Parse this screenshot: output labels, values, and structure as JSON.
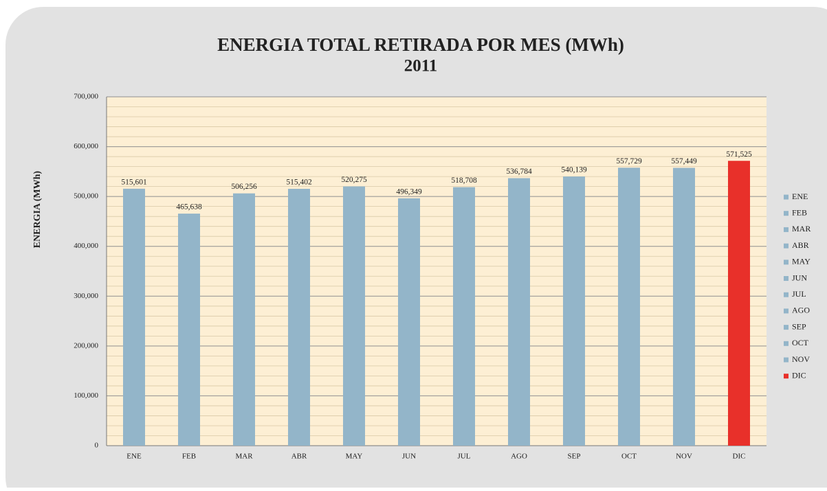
{
  "chart_data": {
    "type": "bar",
    "title": "ENERGIA TOTAL RETIRADA POR MES (MWh)",
    "subtitle": "2011",
    "y_label": "ENERGIA (MWh)",
    "categories": [
      "ENE",
      "FEB",
      "MAR",
      "ABR",
      "MAY",
      "JUN",
      "JUL",
      "AGO",
      "SEP",
      "OCT",
      "NOV",
      "DIC"
    ],
    "values": [
      515601,
      465638,
      506256,
      515402,
      520275,
      496349,
      518708,
      536784,
      540139,
      557729,
      557449,
      571525
    ],
    "value_labels": [
      "515,601",
      "465,638",
      "506,256",
      "515,402",
      "520,275",
      "496,349",
      "518,708",
      "536,784",
      "540,139",
      "557,729",
      "557,449",
      "571,525"
    ],
    "colors": [
      "#93b5c9",
      "#93b5c9",
      "#93b5c9",
      "#93b5c9",
      "#93b5c9",
      "#93b5c9",
      "#93b5c9",
      "#93b5c9",
      "#93b5c9",
      "#93b5c9",
      "#93b5c9",
      "#e8302a"
    ],
    "ylim": [
      0,
      700000
    ],
    "yticks": [
      0,
      {
        "value": 100000,
        "label": "100,000"
      },
      {
        "value": 200000,
        "label": "200,000"
      },
      {
        "value": 300000,
        "label": "300,000"
      },
      {
        "value": 400000,
        "label": "400,000"
      },
      {
        "value": 500000,
        "label": "500,000"
      },
      {
        "value": 600000,
        "label": "600,000"
      },
      {
        "value": 700000,
        "label": "700,000"
      }
    ],
    "grid": true,
    "legend": "right"
  }
}
